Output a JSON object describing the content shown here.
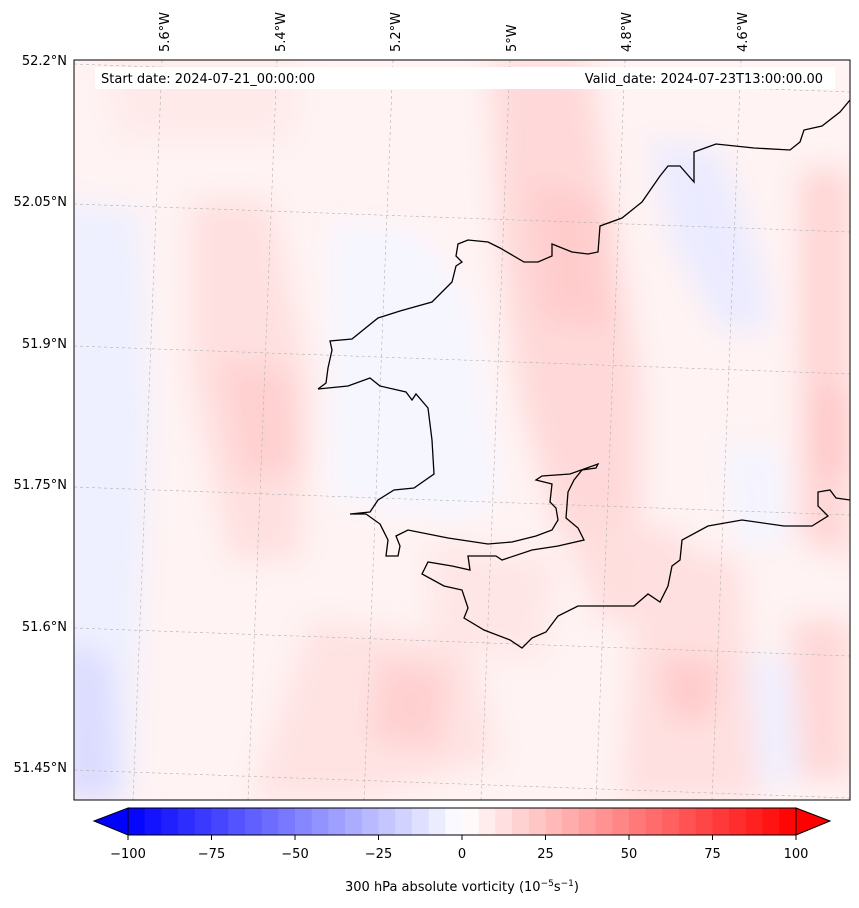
{
  "map": {
    "start_date_label": "Start date: 2024-07-21_00:00:00",
    "valid_date_label": "Valid_date: 2024-07-23T13:00:00.00",
    "lon_labels": [
      "5.6°W",
      "5.4°W",
      "5.2°W",
      "5°W",
      "4.8°W",
      "4.6°W"
    ],
    "lat_labels": [
      "52.2°N",
      "52.05°N",
      "51.9°N",
      "51.75°N",
      "51.6°N",
      "51.45°N"
    ],
    "field": "300 hPa absolute vorticity",
    "coastline_color": "#000000",
    "gridline_color": "#b0b0b0"
  },
  "colorbar": {
    "label_main": "300 hPa absolute vorticity (10",
    "label_exp1": "−5",
    "label_mid": "s",
    "label_exp2": "−1",
    "label_end": ")",
    "ticks": [
      "−100",
      "−75",
      "−50",
      "−25",
      "0",
      "25",
      "50",
      "75",
      "100"
    ],
    "min": -100,
    "max": 100,
    "colormap": "bwr",
    "low_color": "#0000ff",
    "mid_color": "#ffffff",
    "high_color": "#ff0000"
  }
}
